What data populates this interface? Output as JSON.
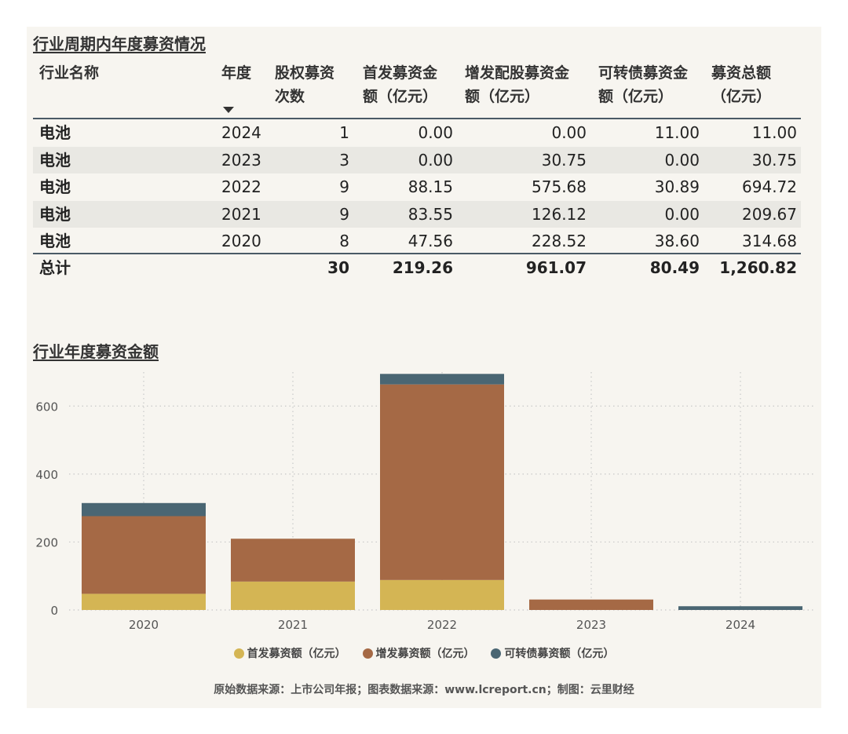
{
  "table": {
    "title": "行业周期内年度募资情况",
    "headers": {
      "name": "行业名称",
      "year": "年度",
      "count": [
        "股权募资",
        "次数"
      ],
      "ipo": [
        "首发募资金",
        "额（亿元）"
      ],
      "add": [
        "增发配股募资金",
        "额（亿元）"
      ],
      "conv": [
        "可转债募资金",
        "额（亿元）"
      ],
      "total": [
        "募资总额",
        "（亿元）"
      ]
    },
    "rows": [
      {
        "name": "电池",
        "year": "2024",
        "count": "1",
        "ipo": "0.00",
        "add": "0.00",
        "conv": "11.00",
        "total": "11.00"
      },
      {
        "name": "电池",
        "year": "2023",
        "count": "3",
        "ipo": "0.00",
        "add": "30.75",
        "conv": "0.00",
        "total": "30.75"
      },
      {
        "name": "电池",
        "year": "2022",
        "count": "9",
        "ipo": "88.15",
        "add": "575.68",
        "conv": "30.89",
        "total": "694.72"
      },
      {
        "name": "电池",
        "year": "2021",
        "count": "9",
        "ipo": "83.55",
        "add": "126.12",
        "conv": "0.00",
        "total": "209.67"
      },
      {
        "name": "电池",
        "year": "2020",
        "count": "8",
        "ipo": "47.56",
        "add": "228.52",
        "conv": "38.60",
        "total": "314.68"
      }
    ],
    "totals": {
      "name": "总计",
      "count": "30",
      "ipo": "219.26",
      "add": "961.07",
      "conv": "80.49",
      "total": "1,260.82"
    }
  },
  "chart_data": {
    "type": "bar",
    "stacked": true,
    "title": "行业年度募资金额",
    "categories": [
      "2020",
      "2021",
      "2022",
      "2023",
      "2024"
    ],
    "series": [
      {
        "name": "首发募资额（亿元）",
        "values": [
          47.56,
          83.55,
          88.15,
          0.0,
          0.0
        ],
        "color": "#d4b554"
      },
      {
        "name": "增发募资额（亿元）",
        "values": [
          228.52,
          126.12,
          575.68,
          30.75,
          0.0
        ],
        "color": "#a56945"
      },
      {
        "name": "可转债募资额（亿元）",
        "values": [
          38.6,
          0.0,
          30.89,
          0.0,
          11.0
        ],
        "color": "#4a6673"
      }
    ],
    "yticks": [
      0,
      200,
      400,
      600
    ],
    "ylim": [
      0,
      700
    ],
    "grid": true,
    "legend": "bottom"
  },
  "source": "原始数据来源：上市公司年报；图表数据来源：www.lcreport.cn；制图：云里财经"
}
